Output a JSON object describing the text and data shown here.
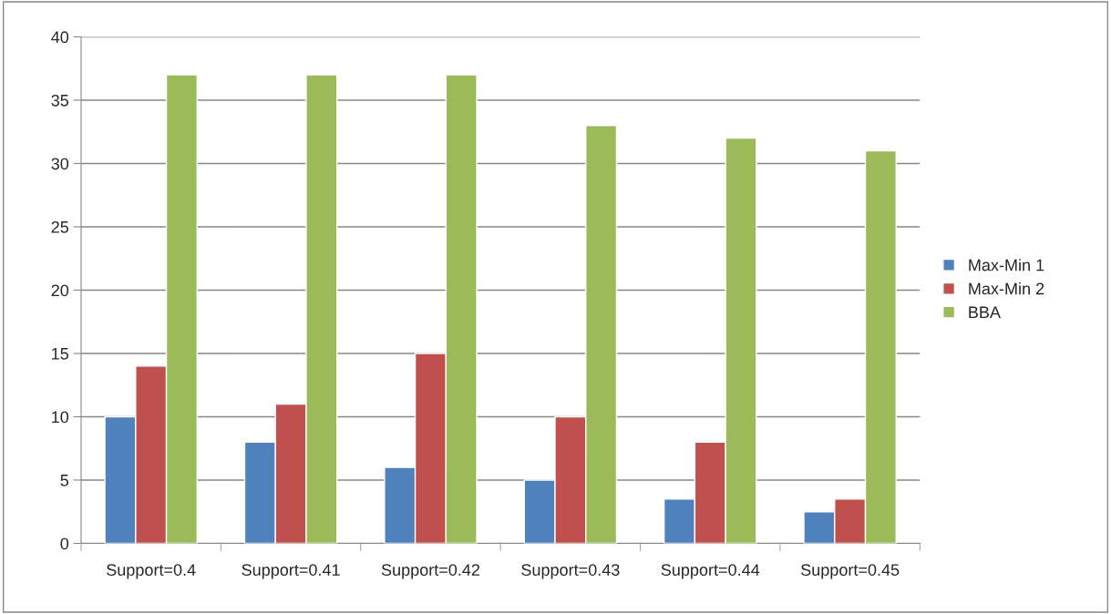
{
  "chart_data": {
    "type": "bar",
    "categories": [
      "Support=0.4",
      "Support=0.41",
      "Support=0.42",
      "Support=0.43",
      "Support=0.44",
      "Support=0.45"
    ],
    "series": [
      {
        "name": "Max-Min 1",
        "color": "#4f81bd",
        "values": [
          10,
          8,
          6,
          5,
          3.5,
          2.5
        ]
      },
      {
        "name": "Max-Min 2",
        "color": "#c0504d",
        "values": [
          14,
          11,
          15,
          10,
          8,
          3.5
        ]
      },
      {
        "name": "BBA",
        "color": "#9bbb59",
        "values": [
          37,
          37,
          37,
          33,
          32,
          31
        ]
      }
    ],
    "ylim": [
      0,
      40
    ],
    "yticks": [
      0,
      5,
      10,
      15,
      20,
      25,
      30,
      35,
      40
    ],
    "grid": "y",
    "legend": "right"
  }
}
